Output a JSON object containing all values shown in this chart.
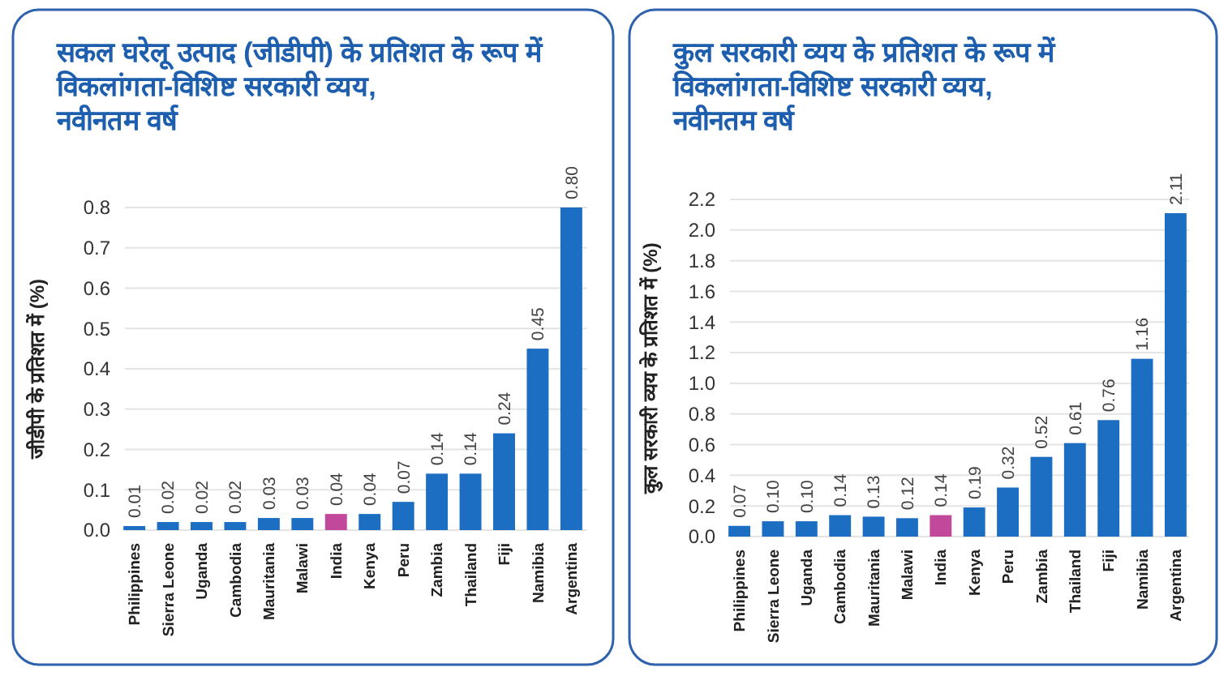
{
  "chart_data": [
    {
      "type": "bar",
      "title": "सकल घरेलू उत्पाद (जीडीपी) के प्रतिशत के रूप में\nविकलांगता-विशिष्ट सरकारी व्यय,\nनवीनतम वर्ष",
      "ylabel": "जीडीपी के प्रतिशत में (%)",
      "categories": [
        "Philippines",
        "Sierra Leone",
        "Uganda",
        "Cambodia",
        "Mauritania",
        "Malawi",
        "India",
        "Kenya",
        "Peru",
        "Zambia",
        "Thailand",
        "Fiji",
        "Namibia",
        "Argentina"
      ],
      "values": [
        0.01,
        0.02,
        0.02,
        0.02,
        0.03,
        0.03,
        0.04,
        0.04,
        0.07,
        0.14,
        0.14,
        0.24,
        0.45,
        0.8
      ],
      "value_labels": [
        "0.01",
        "0.02",
        "0.02",
        "0.02",
        "0.03",
        "0.03",
        "0.04",
        "0.04",
        "0.07",
        "0.14",
        "0.14",
        "0.24",
        "0.45",
        "0.80"
      ],
      "colors": [
        "#1b6ec2",
        "#1b6ec2",
        "#1b6ec2",
        "#1b6ec2",
        "#1b6ec2",
        "#1b6ec2",
        "#c2489c",
        "#1b6ec2",
        "#1b6ec2",
        "#1b6ec2",
        "#1b6ec2",
        "#1b6ec2",
        "#1b6ec2",
        "#1b6ec2"
      ],
      "ylim": [
        0,
        0.8
      ],
      "yticks": [
        {
          "value": 0,
          "label": "0.0"
        },
        0.1,
        0.2,
        0.3,
        0.4,
        0.5,
        0.6,
        0.7,
        0.8
      ],
      "grid": "y"
    },
    {
      "type": "bar",
      "title": "कुल सरकारी व्यय के प्रतिशत के रूप में\nविकलांगता-विशिष्ट सरकारी व्यय,\nनवीनतम वर्ष",
      "ylabel": "कुल सरकारी व्यय के प्रतिशत में (%)",
      "categories": [
        "Philippines",
        "Sierra Leone",
        "Uganda",
        "Cambodia",
        "Mauritania",
        "Malawi",
        "India",
        "Kenya",
        "Peru",
        "Zambia",
        "Thailand",
        "Fiji",
        "Namibia",
        "Argentina"
      ],
      "values": [
        0.07,
        0.1,
        0.1,
        0.14,
        0.13,
        0.12,
        0.14,
        0.19,
        0.32,
        0.52,
        0.61,
        0.76,
        1.16,
        2.11
      ],
      "value_labels": [
        "0.07",
        "0.10",
        "0.10",
        "0.14",
        "0.13",
        "0.12",
        "0.14",
        "0.19",
        "0.32",
        "0.52",
        "0.61",
        "0.76",
        "1.16",
        "2.11"
      ],
      "colors": [
        "#1b6ec2",
        "#1b6ec2",
        "#1b6ec2",
        "#1b6ec2",
        "#1b6ec2",
        "#1b6ec2",
        "#c2489c",
        "#1b6ec2",
        "#1b6ec2",
        "#1b6ec2",
        "#1b6ec2",
        "#1b6ec2",
        "#1b6ec2",
        "#1b6ec2"
      ],
      "ylim": [
        0,
        2.2
      ],
      "yticks": [
        {
          "value": 0,
          "label": "0.0"
        },
        0.2,
        0.4,
        0.6,
        0.8,
        {
          "value": 1,
          "label": "1.0"
        },
        1.2,
        1.4,
        1.6,
        1.8,
        {
          "value": 2,
          "label": "2.0"
        },
        2.2
      ],
      "grid": "y"
    }
  ]
}
